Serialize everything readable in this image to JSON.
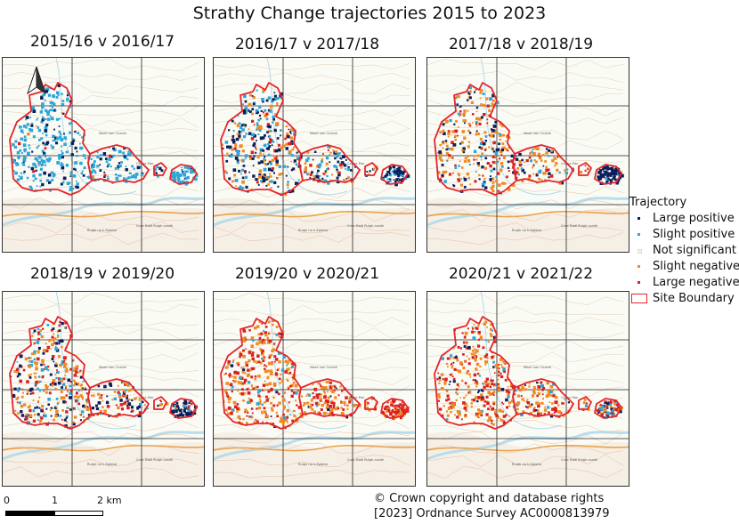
{
  "title": "Strathy Change trajectories 2015 to 2023",
  "panels": [
    {
      "label": "2015/16 v 2016/17",
      "mix": [
        0.1,
        0.45,
        0.43,
        0.01,
        0.01
      ],
      "east_mix": [
        0.05,
        0.55,
        0.4,
        0.0,
        0.0
      ]
    },
    {
      "label": "2016/17 v 2017/18",
      "mix": [
        0.22,
        0.2,
        0.35,
        0.18,
        0.05
      ],
      "east_mix": [
        0.5,
        0.2,
        0.3,
        0.0,
        0.0
      ]
    },
    {
      "label": "2017/18 v 2018/19",
      "mix": [
        0.12,
        0.08,
        0.4,
        0.28,
        0.12
      ],
      "east_mix": [
        0.9,
        0.05,
        0.05,
        0.0,
        0.0
      ]
    },
    {
      "label": "2018/19 v 2019/20",
      "mix": [
        0.18,
        0.1,
        0.36,
        0.24,
        0.12
      ],
      "east_mix": [
        0.6,
        0.1,
        0.2,
        0.05,
        0.05
      ]
    },
    {
      "label": "2019/20 v 2020/21",
      "mix": [
        0.02,
        0.03,
        0.3,
        0.4,
        0.25
      ],
      "east_mix": [
        0.0,
        0.0,
        0.1,
        0.3,
        0.6
      ]
    },
    {
      "label": "2020/21 v 2021/22",
      "mix": [
        0.05,
        0.05,
        0.3,
        0.35,
        0.25
      ],
      "east_mix": [
        0.2,
        0.1,
        0.2,
        0.2,
        0.3
      ]
    }
  ],
  "legend": {
    "title": "Trajectory",
    "items": [
      {
        "label": "Large positive",
        "color": "#0b1f5c"
      },
      {
        "label": "Slight positive",
        "color": "#2aa7d8"
      },
      {
        "label": "Not significant",
        "color": "#f3f3ee"
      },
      {
        "label": "Slight negative",
        "color": "#f08a24"
      },
      {
        "label": "Large negative",
        "color": "#d9201f"
      }
    ],
    "boundary_label": "Site Boundary",
    "boundary_color": "#e4262a"
  },
  "scale": {
    "labels": [
      "0",
      "1",
      "2 km"
    ]
  },
  "copyright": {
    "line1": "© Crown copyright and database rights",
    "line2": "[2023] Ordnance Survey AC0000813979"
  },
  "map_labels": {
    "place_a": "Cadha Mor",
    "place_b": "Cnoc Badl Ruigh-ruadh",
    "place_c": "Ruigh na h-Eglaise",
    "place_d": "Meall nan Cnamh"
  }
}
